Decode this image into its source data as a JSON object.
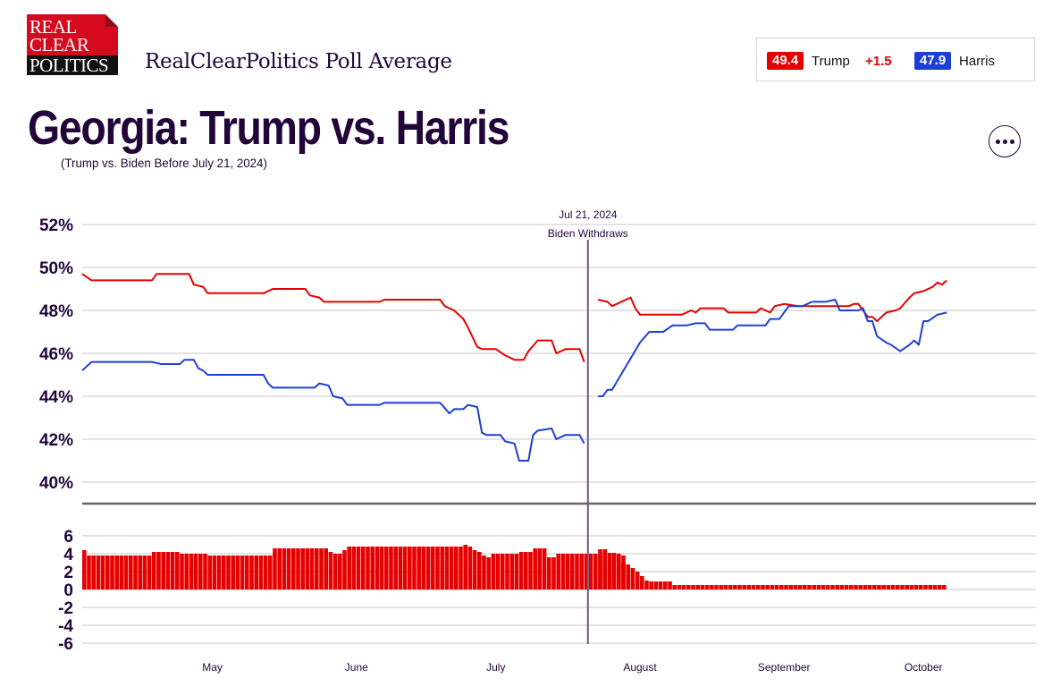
{
  "header": {
    "logo_lines": [
      "REAL",
      "CLEAR",
      "POLITICS"
    ],
    "site_title": "RealClearPolitics Poll Average",
    "main_title": "Georgia: Trump vs. Harris",
    "subtitle": "(Trump vs. Biden Before July 21, 2024)",
    "more_button_icon": "more-horizontal-icon"
  },
  "summary": {
    "trump_value": "49.4",
    "trump_label": "Trump",
    "spread": "+1.5",
    "harris_value": "47.9",
    "harris_label": "Harris"
  },
  "colors": {
    "trump": "#e60000",
    "harris": "#1e3fd6",
    "text": "#22063a",
    "grid": "#e3e3e3"
  },
  "chart_data": [
    {
      "type": "line",
      "title": "Georgia: Trump vs. Harris",
      "ylabel": "",
      "xlabel": "",
      "ylim": [
        39,
        52.5
      ],
      "yticks": [
        40,
        42,
        44,
        46,
        48,
        50,
        52
      ],
      "ytick_labels": [
        "40%",
        "42%",
        "44%",
        "46%",
        "48%",
        "50%",
        "52%"
      ],
      "x_start": "2024-04-03",
      "x_end": "2024-10-16",
      "xticks": [
        {
          "date": "2024-05-01",
          "label": "May"
        },
        {
          "date": "2024-06-01",
          "label": "June"
        },
        {
          "date": "2024-07-01",
          "label": "July"
        },
        {
          "date": "2024-08-01",
          "label": "August"
        },
        {
          "date": "2024-09-01",
          "label": "September"
        },
        {
          "date": "2024-10-01",
          "label": "October"
        }
      ],
      "grid": true,
      "legend": "top-right",
      "annotation": {
        "date": "2024-07-21",
        "line1": "Jul 21, 2024",
        "line2": "Biden Withdraws"
      },
      "series": [
        {
          "name": "Trump",
          "color": "#e60000",
          "segments": [
            [
              [
                "2024-04-03",
                49.7
              ],
              [
                "2024-04-05",
                49.4
              ],
              [
                "2024-04-18",
                49.4
              ],
              [
                "2024-04-19",
                49.7
              ],
              [
                "2024-04-26",
                49.7
              ],
              [
                "2024-04-27",
                49.2
              ],
              [
                "2024-04-29",
                49.1
              ],
              [
                "2024-04-30",
                48.8
              ],
              [
                "2024-05-12",
                48.8
              ],
              [
                "2024-05-14",
                49.0
              ],
              [
                "2024-05-21",
                49.0
              ],
              [
                "2024-05-22",
                48.7
              ],
              [
                "2024-05-24",
                48.6
              ],
              [
                "2024-05-25",
                48.4
              ],
              [
                "2024-06-06",
                48.4
              ],
              [
                "2024-06-07",
                48.5
              ],
              [
                "2024-06-19",
                48.5
              ],
              [
                "2024-06-20",
                48.2
              ],
              [
                "2024-06-22",
                48.0
              ],
              [
                "2024-06-24",
                47.6
              ],
              [
                "2024-06-25",
                47.2
              ],
              [
                "2024-06-27",
                46.3
              ],
              [
                "2024-06-28",
                46.2
              ],
              [
                "2024-07-01",
                46.2
              ],
              [
                "2024-07-03",
                45.9
              ],
              [
                "2024-07-05",
                45.7
              ],
              [
                "2024-07-07",
                45.7
              ],
              [
                "2024-07-08",
                46.1
              ],
              [
                "2024-07-10",
                46.6
              ],
              [
                "2024-07-13",
                46.6
              ],
              [
                "2024-07-14",
                46.0
              ],
              [
                "2024-07-16",
                46.2
              ],
              [
                "2024-07-19",
                46.2
              ],
              [
                "2024-07-20",
                45.6
              ]
            ],
            [
              [
                "2024-07-23",
                48.5
              ],
              [
                "2024-07-25",
                48.4
              ],
              [
                "2024-07-26",
                48.2
              ],
              [
                "2024-07-27",
                48.3
              ],
              [
                "2024-07-29",
                48.5
              ],
              [
                "2024-07-30",
                48.6
              ],
              [
                "2024-07-31",
                48.1
              ],
              [
                "2024-08-01",
                47.8
              ],
              [
                "2024-08-10",
                47.8
              ],
              [
                "2024-08-12",
                48.0
              ],
              [
                "2024-08-13",
                47.9
              ],
              [
                "2024-08-14",
                48.1
              ],
              [
                "2024-08-19",
                48.1
              ],
              [
                "2024-08-20",
                47.9
              ],
              [
                "2024-08-26",
                47.9
              ],
              [
                "2024-08-27",
                48.1
              ],
              [
                "2024-08-29",
                47.9
              ],
              [
                "2024-08-30",
                48.2
              ],
              [
                "2024-09-01",
                48.3
              ],
              [
                "2024-09-04",
                48.2
              ],
              [
                "2024-09-15",
                48.2
              ],
              [
                "2024-09-16",
                48.3
              ],
              [
                "2024-09-17",
                48.3
              ],
              [
                "2024-09-18",
                48.0
              ],
              [
                "2024-09-19",
                47.7
              ],
              [
                "2024-09-20",
                47.7
              ],
              [
                "2024-09-21",
                47.5
              ],
              [
                "2024-09-23",
                47.9
              ],
              [
                "2024-09-25",
                48.0
              ],
              [
                "2024-09-26",
                48.1
              ],
              [
                "2024-09-28",
                48.6
              ],
              [
                "2024-09-29",
                48.8
              ],
              [
                "2024-10-01",
                48.9
              ],
              [
                "2024-10-03",
                49.1
              ],
              [
                "2024-10-04",
                49.3
              ],
              [
                "2024-10-05",
                49.2
              ],
              [
                "2024-10-06",
                49.4
              ]
            ]
          ]
        },
        {
          "name": "Harris",
          "color": "#1e3fd6",
          "segments": [
            [
              [
                "2024-04-03",
                45.2
              ],
              [
                "2024-04-05",
                45.6
              ],
              [
                "2024-04-18",
                45.6
              ],
              [
                "2024-04-20",
                45.5
              ],
              [
                "2024-04-24",
                45.5
              ],
              [
                "2024-04-25",
                45.7
              ],
              [
                "2024-04-27",
                45.7
              ],
              [
                "2024-04-28",
                45.3
              ],
              [
                "2024-04-29",
                45.2
              ],
              [
                "2024-04-30",
                45.0
              ],
              [
                "2024-05-12",
                45.0
              ],
              [
                "2024-05-13",
                44.6
              ],
              [
                "2024-05-14",
                44.4
              ],
              [
                "2024-05-23",
                44.4
              ],
              [
                "2024-05-24",
                44.6
              ],
              [
                "2024-05-26",
                44.5
              ],
              [
                "2024-05-27",
                44.0
              ],
              [
                "2024-05-29",
                43.9
              ],
              [
                "2024-05-30",
                43.6
              ],
              [
                "2024-06-06",
                43.6
              ],
              [
                "2024-06-07",
                43.7
              ],
              [
                "2024-06-19",
                43.7
              ],
              [
                "2024-06-21",
                43.2
              ],
              [
                "2024-06-22",
                43.4
              ],
              [
                "2024-06-24",
                43.4
              ],
              [
                "2024-06-25",
                43.6
              ],
              [
                "2024-06-27",
                43.5
              ],
              [
                "2024-06-28",
                42.3
              ],
              [
                "2024-06-29",
                42.2
              ],
              [
                "2024-07-02",
                42.2
              ],
              [
                "2024-07-03",
                41.9
              ],
              [
                "2024-07-05",
                41.8
              ],
              [
                "2024-07-06",
                41.0
              ],
              [
                "2024-07-07",
                41.0
              ],
              [
                "2024-07-08",
                41.0
              ],
              [
                "2024-07-09",
                42.2
              ],
              [
                "2024-07-10",
                42.4
              ],
              [
                "2024-07-13",
                42.5
              ],
              [
                "2024-07-14",
                42.0
              ],
              [
                "2024-07-16",
                42.2
              ],
              [
                "2024-07-19",
                42.2
              ],
              [
                "2024-07-20",
                41.8
              ]
            ],
            [
              [
                "2024-07-23",
                44.0
              ],
              [
                "2024-07-24",
                44.0
              ],
              [
                "2024-07-25",
                44.3
              ],
              [
                "2024-07-26",
                44.3
              ],
              [
                "2024-07-29",
                45.4
              ],
              [
                "2024-08-01",
                46.5
              ],
              [
                "2024-08-03",
                47.0
              ],
              [
                "2024-08-06",
                47.0
              ],
              [
                "2024-08-08",
                47.3
              ],
              [
                "2024-08-11",
                47.3
              ],
              [
                "2024-08-13",
                47.4
              ],
              [
                "2024-08-15",
                47.4
              ],
              [
                "2024-08-16",
                47.1
              ],
              [
                "2024-08-21",
                47.1
              ],
              [
                "2024-08-22",
                47.3
              ],
              [
                "2024-08-28",
                47.3
              ],
              [
                "2024-08-29",
                47.6
              ],
              [
                "2024-08-31",
                47.6
              ],
              [
                "2024-09-02",
                48.2
              ],
              [
                "2024-09-05",
                48.2
              ],
              [
                "2024-09-07",
                48.4
              ],
              [
                "2024-09-10",
                48.4
              ],
              [
                "2024-09-12",
                48.5
              ],
              [
                "2024-09-13",
                48.0
              ],
              [
                "2024-09-17",
                48.0
              ],
              [
                "2024-09-18",
                48.1
              ],
              [
                "2024-09-19",
                47.5
              ],
              [
                "2024-09-20",
                47.5
              ],
              [
                "2024-09-21",
                46.8
              ],
              [
                "2024-09-23",
                46.5
              ],
              [
                "2024-09-24",
                46.4
              ],
              [
                "2024-09-26",
                46.1
              ],
              [
                "2024-09-28",
                46.4
              ],
              [
                "2024-09-29",
                46.6
              ],
              [
                "2024-09-30",
                46.4
              ],
              [
                "2024-10-01",
                47.5
              ],
              [
                "2024-10-02",
                47.5
              ],
              [
                "2024-10-04",
                47.8
              ],
              [
                "2024-10-06",
                47.9
              ]
            ]
          ]
        }
      ]
    },
    {
      "type": "bar",
      "title": "Spread (Trump minus Harris/Biden)",
      "ylim": [
        -6,
        6
      ],
      "yticks": [
        -6,
        -4,
        -2,
        0,
        2,
        4,
        6
      ],
      "ytick_labels": [
        "-6",
        "-4",
        "-2",
        "0",
        "2",
        "4",
        "6"
      ],
      "grid": true,
      "positive_color": "#e60000",
      "negative_color": "#1e3fd6",
      "segments": [
        {
          "start": "2024-04-03",
          "values": [
            4.4,
            3.8,
            3.8,
            3.8,
            3.8,
            3.8,
            3.8,
            3.8,
            3.8,
            3.8,
            3.8,
            3.8,
            3.8,
            3.8,
            3.8,
            4.2,
            4.2,
            4.2,
            4.2,
            4.2,
            4.2,
            4.0,
            4.0,
            4.0,
            4.0,
            4.0,
            4.0,
            3.8,
            3.8,
            3.8,
            3.8,
            3.8,
            3.8,
            3.8,
            3.8,
            3.8,
            3.8,
            3.8,
            3.8,
            3.8,
            3.8,
            4.6,
            4.6,
            4.6,
            4.6,
            4.6,
            4.6,
            4.6,
            4.6,
            4.6,
            4.6,
            4.6,
            4.6,
            4.2,
            4.0,
            4.0,
            4.4,
            4.8,
            4.8,
            4.8,
            4.8,
            4.8,
            4.8,
            4.8,
            4.8,
            4.8,
            4.8,
            4.8,
            4.8,
            4.8,
            4.8,
            4.8,
            4.8,
            4.8,
            4.8,
            4.8,
            4.8,
            4.8,
            4.8,
            4.8,
            4.8,
            4.8,
            5.0,
            4.8,
            4.4,
            4.2,
            3.8,
            3.6,
            4.0,
            4.0,
            4.0,
            4.0,
            4.0,
            4.0,
            4.2,
            4.2,
            4.2,
            4.6,
            4.6,
            4.6,
            3.6,
            3.6,
            4.0,
            4.0,
            4.0,
            4.0,
            4.0,
            4.0,
            4.0,
            4.0,
            4.0,
            3.8,
            4.0,
            4.0,
            4.0,
            4.0,
            3.8
          ]
        },
        {
          "start": "2024-07-23",
          "values": [
            4.5,
            4.5,
            4.1,
            4.1,
            3.5,
            3.0,
            2.8,
            2.4,
            2.0,
            1.5,
            1.0,
            0.9,
            0.9,
            0.9,
            0.9,
            0.9,
            0.5,
            0.5,
            0.5,
            0.5,
            0.5,
            0.5,
            0.5,
            0.5,
            0.5,
            0.5,
            0.5,
            0.5,
            0.5,
            0.5,
            0.5,
            0.5,
            0.5,
            0.5,
            0.5,
            0.5,
            0.5,
            0.5,
            0.5,
            0.5,
            0.5,
            0.5,
            0.5,
            0.5,
            0.5,
            0.5,
            0.5,
            0.5,
            0.5,
            0.5,
            0.5,
            0.5,
            0.5,
            0.5,
            0.5,
            0.5,
            0.5,
            0.5,
            0.5,
            0.5,
            0.5,
            0.5,
            0.5,
            0.5,
            0.5,
            0.5,
            0.5,
            0.5,
            0.5,
            0.5,
            0.5,
            0.5,
            0.5,
            0.5,
            0.5
          ]
        }
      ]
    }
  ]
}
